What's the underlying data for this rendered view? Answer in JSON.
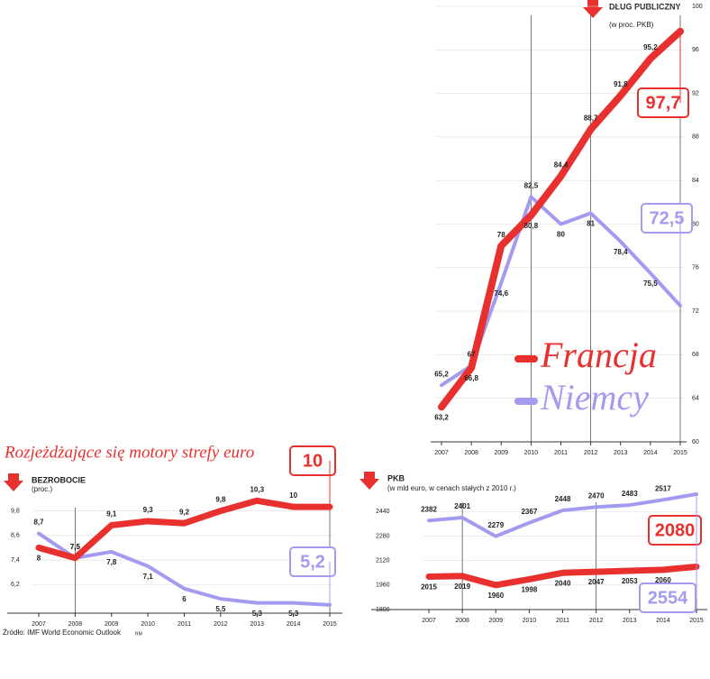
{
  "header": {
    "title": "Rozjeżdżające się motory strefy euro"
  },
  "footer": {
    "source": "Źródło: IMF World Economic Outlook",
    "credit": "RM"
  },
  "chart_data": [
    {
      "type": "line",
      "title": "DŁUG PUBLICZNY",
      "subtitle": "(w proc. PKB)",
      "categories": [
        "2007",
        "2008",
        "2009",
        "2010",
        "2011",
        "2012",
        "2013",
        "2014",
        "2015"
      ],
      "series": [
        {
          "name": "Francja",
          "color": "#e8312f",
          "values": [
            63.2,
            66.8,
            78,
            80.8,
            84.4,
            88.7,
            91.8,
            95.2,
            97.7
          ],
          "value_labels": [
            "63,2",
            "66,8",
            "78",
            "80,8",
            "84,4",
            "88,7",
            "91,8",
            "95,2",
            "97,7"
          ]
        },
        {
          "name": "Niemcy",
          "color": "#a39bf0",
          "values": [
            65.2,
            67,
            74.6,
            82.5,
            80,
            81,
            78.4,
            75.5,
            72.5
          ],
          "value_labels": [
            "65,2",
            "67",
            "74,6",
            "82,5",
            "80",
            "81",
            "78,4",
            "75,5",
            "72,5"
          ]
        }
      ],
      "ylim": [
        60,
        100
      ],
      "yticks": [
        60,
        64,
        68,
        72,
        76,
        80,
        84,
        88,
        92,
        96,
        100
      ]
    },
    {
      "type": "line",
      "title": "BEZROBOCIE",
      "subtitle": "(proc.)",
      "categories": [
        "2007",
        "2008",
        "2009",
        "2010",
        "2011",
        "2012",
        "2013",
        "2014",
        "2015"
      ],
      "series": [
        {
          "color": "#e8312f",
          "values": [
            8,
            7.5,
            9.1,
            9.3,
            9.2,
            9.8,
            10.3,
            10,
            10
          ],
          "value_labels": [
            "8",
            "7,5",
            "9,1",
            "9,3",
            "9,2",
            "9,8",
            "10,3",
            "10",
            "10"
          ]
        },
        {
          "color": "#a39bf0",
          "values": [
            8.7,
            7.5,
            7.8,
            7.1,
            6,
            5.5,
            5.3,
            5.3,
            5.2
          ],
          "value_labels": [
            "8,7",
            "7,5",
            "7,8",
            "7,1",
            "6",
            "5,5",
            "5,3",
            "5,3",
            "5,2"
          ]
        }
      ],
      "ylim": [
        4.8,
        10.4
      ],
      "yticks": [
        {
          "value": 6.2,
          "label": "6,2"
        },
        {
          "value": 7.4,
          "label": "7,4"
        },
        {
          "value": 8.6,
          "label": "8,6"
        },
        {
          "value": 9.8,
          "label": "9,8"
        }
      ]
    },
    {
      "type": "line",
      "title": "PKB",
      "subtitle": "(w mld euro, w cenach stałych z 2010 r.)",
      "categories": [
        "2007",
        "2008",
        "2009",
        "2010",
        "2011",
        "2012",
        "2013",
        "2014",
        "2015"
      ],
      "series": [
        {
          "color": "#e8312f",
          "values": [
            2015,
            2019,
            1960,
            1998,
            2040,
            2047,
            2053,
            2060,
            2080
          ]
        },
        {
          "color": "#a39bf0",
          "values": [
            2382,
            2401,
            2279,
            2367,
            2448,
            2470,
            2483,
            2517,
            2554
          ]
        }
      ],
      "ylim": [
        1800,
        2560
      ],
      "yticks": [
        1800,
        1960,
        2120,
        2280,
        2440
      ]
    }
  ]
}
